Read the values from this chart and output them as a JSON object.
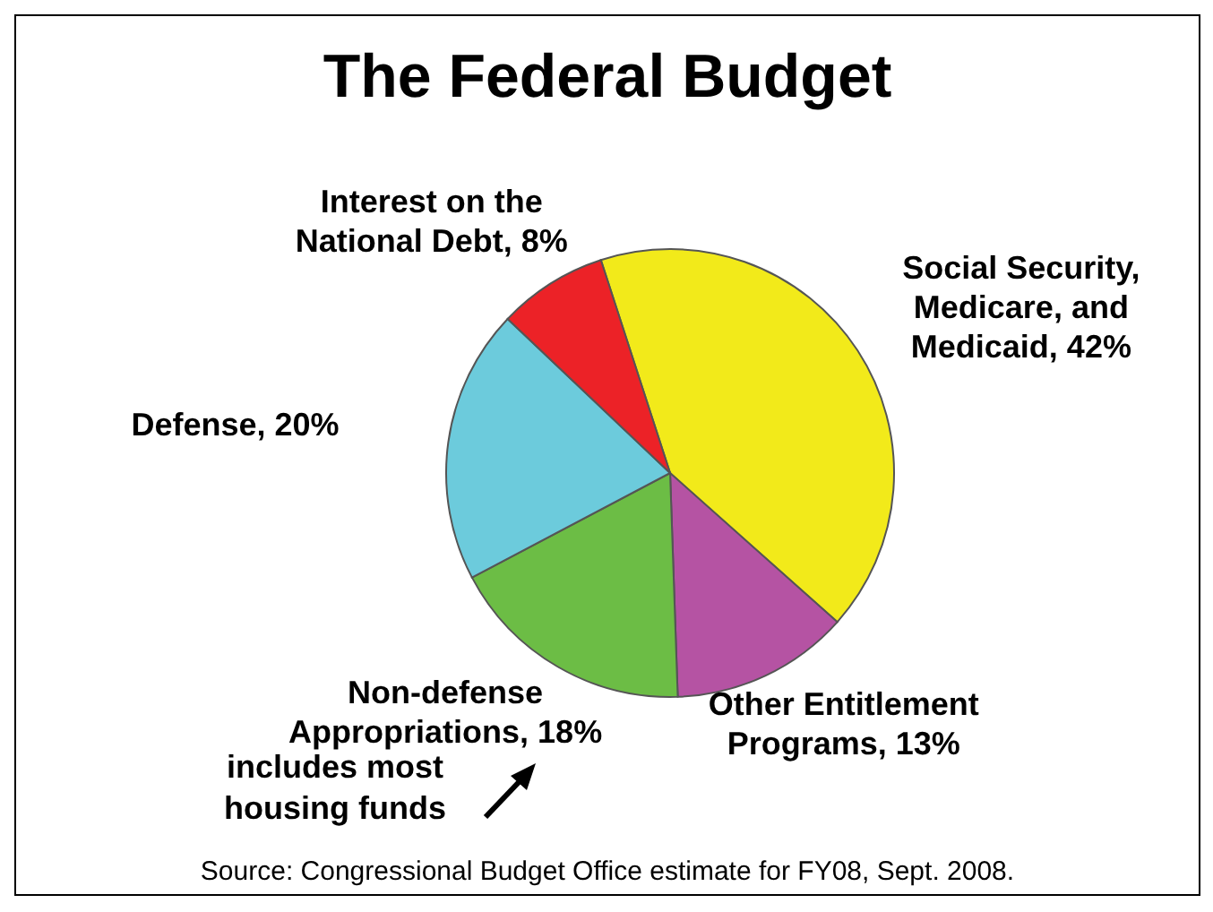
{
  "chart_data": {
    "type": "pie",
    "title": "The Federal Budget",
    "categories": [
      "Social Security, Medicare, and Medicaid, 42%",
      "Other Entitlement Programs, 13%",
      "Non-defense Appropriations, 18%",
      "Defense, 20%",
      "Interest on the National Debt, 8%"
    ],
    "values": [
      42,
      13,
      18,
      20,
      8
    ],
    "colors": [
      "#f2ea1a",
      "#b553a3",
      "#6cbd45",
      "#6ccbdc",
      "#ec2227"
    ],
    "annotations": [
      "includes most housing funds",
      "Source: Congressional Budget Office estimate for FY08, Sept. 2008."
    ]
  }
}
